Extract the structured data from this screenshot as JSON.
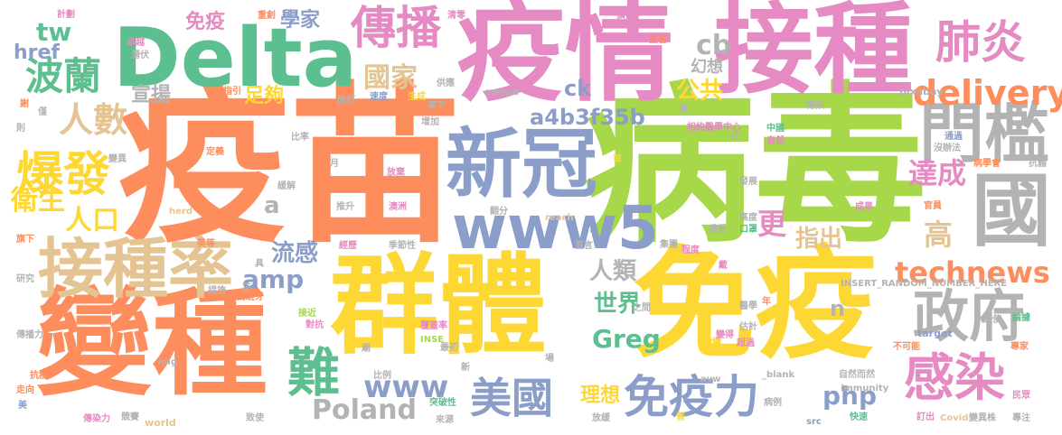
{
  "palette": {
    "orange": "#fd8d5c",
    "green": "#5cbf8f",
    "pink": "#e58ac2",
    "lime": "#a6d84a",
    "yellow": "#fdd835",
    "slate": "#8a9ec9",
    "gray": "#b3b3b3",
    "tan": "#e5c494"
  },
  "words": [
    {
      "text": "疫苗",
      "color": "#fd8d5c"
    },
    {
      "text": "病毒",
      "color": "#a6d84a"
    },
    {
      "text": "疫情",
      "color": "#e58ac2"
    },
    {
      "text": "Delta",
      "color": "#5cbf8f"
    },
    {
      "text": "接種",
      "color": "#e58ac2"
    },
    {
      "text": "群體",
      "color": "#fdd835"
    },
    {
      "text": "免疫",
      "color": "#fdd835"
    },
    {
      "text": "變種",
      "color": "#fd8d5c"
    },
    {
      "text": "新冠",
      "color": "#8a9ec9"
    },
    {
      "text": "國",
      "color": "#b3b3b3"
    },
    {
      "text": "接種率",
      "color": "#e5c494"
    },
    {
      "text": "www5",
      "color": "#8a9ec9"
    },
    {
      "text": "門檻",
      "color": "#b3b3b3"
    },
    {
      "text": "免疫力",
      "color": "#8a9ec9"
    },
    {
      "text": "美國",
      "color": "#8a9ec9"
    },
    {
      "text": "政府",
      "color": "#b3b3b3"
    },
    {
      "text": "感染",
      "color": "#e58ac2"
    },
    {
      "text": "爆發",
      "color": "#fdd835"
    },
    {
      "text": "傳播",
      "color": "#e58ac2"
    },
    {
      "text": "肺炎",
      "color": "#e58ac2"
    },
    {
      "text": "波蘭",
      "color": "#5cbf8f"
    },
    {
      "text": "人數",
      "color": "#e5c494"
    },
    {
      "text": "delivery",
      "color": "#fd8d5c"
    },
    {
      "text": "technews",
      "color": "#fd8d5c"
    },
    {
      "text": "國家",
      "color": "#e5c494"
    },
    {
      "text": "難",
      "color": "#5cbf8f"
    },
    {
      "text": "Poland",
      "color": "#b3b3b3"
    },
    {
      "text": "www",
      "color": "#8a9ec9"
    },
    {
      "text": "Greg",
      "color": "#5cbf8f"
    },
    {
      "text": "php",
      "color": "#8a9ec9"
    },
    {
      "text": "cb",
      "color": "#b3b3b3"
    },
    {
      "text": "tw",
      "color": "#5cbf8f"
    },
    {
      "text": "href",
      "color": "#8a9ec9"
    },
    {
      "text": "衛生",
      "color": "#fdd835"
    },
    {
      "text": "人口",
      "color": "#fdd835"
    },
    {
      "text": "amp",
      "color": "#8a9ec9"
    },
    {
      "text": "流感",
      "color": "#8a9ec9"
    },
    {
      "text": "a4b3f35b",
      "color": "#8a9ec9"
    },
    {
      "text": "人類",
      "color": "#b3b3b3"
    },
    {
      "text": "世界",
      "color": "#5cbf8f"
    },
    {
      "text": "理想",
      "color": "#fdd835"
    },
    {
      "text": "更",
      "color": "#e58ac2"
    },
    {
      "text": "高",
      "color": "#e5c494"
    },
    {
      "text": "達成",
      "color": "#e58ac2"
    },
    {
      "text": "指出",
      "color": "#e5c494"
    },
    {
      "text": "公共",
      "color": "#fdd835"
    },
    {
      "text": "幻想",
      "color": "#b3b3b3"
    },
    {
      "text": "ck",
      "color": "#8a9ec9"
    },
    {
      "text": "學家",
      "color": "#8a9ec9"
    },
    {
      "text": "宣揚",
      "color": "#b3b3b3"
    },
    {
      "text": "足夠",
      "color": "#fdd835"
    },
    {
      "text": "免疫",
      "color": "#e58ac2"
    },
    {
      "text": "a",
      "color": "#b3b3b3"
    },
    {
      "text": "n",
      "color": "#b3b3b3"
    },
    {
      "text": "zoneid",
      "color": "#b3b3b3"
    },
    {
      "text": "pixabay",
      "color": "#b3b3b3"
    },
    {
      "text": "INSERT_RANDOM_NUMBER_HERE",
      "color": "#b3b3b3"
    },
    {
      "text": "immunity",
      "color": "#b3b3b3"
    },
    {
      "text": "target",
      "color": "#8a9ec9"
    },
    {
      "text": "world",
      "color": "#e5c494"
    },
    {
      "text": "img",
      "color": "#b3b3b3"
    },
    {
      "text": "INSE",
      "color": "#a6d84a"
    },
    {
      "text": "_blank",
      "color": "#b3b3b3"
    },
    {
      "text": "avw",
      "color": "#b3b3b3"
    },
    {
      "text": "src",
      "color": "#8a9ec9"
    },
    {
      "text": "Covid",
      "color": "#e5c494"
    },
    {
      "text": "herd",
      "color": "#e5c494"
    },
    {
      "text": "reach",
      "color": "#e5c494"
    },
    {
      "text": "研究",
      "color": "#b3b3b3"
    },
    {
      "text": "傳染力",
      "color": "#e58ac2"
    },
    {
      "text": "抗疫",
      "color": "#fd8d5c"
    },
    {
      "text": "走向",
      "color": "#fd8d5c"
    },
    {
      "text": "美",
      "color": "#8a9ec9"
    },
    {
      "text": "競賽",
      "color": "#b3b3b3"
    },
    {
      "text": "致使",
      "color": "#b3b3b3"
    },
    {
      "text": "來源",
      "color": "#b3b3b3"
    },
    {
      "text": "放緩",
      "color": "#b3b3b3"
    },
    {
      "text": "病例",
      "color": "#b3b3b3"
    },
    {
      "text": "快速",
      "color": "#5cbf8f"
    },
    {
      "text": "訂出",
      "color": "#e58ac2"
    },
    {
      "text": "變異株",
      "color": "#b3b3b3"
    },
    {
      "text": "專注",
      "color": "#b3b3b3"
    },
    {
      "text": "突破性",
      "color": "#5cbf8f"
    },
    {
      "text": "比例",
      "color": "#b3b3b3"
    },
    {
      "text": "最初",
      "color": "#b3b3b3"
    },
    {
      "text": "持續",
      "color": "#fdd835"
    },
    {
      "text": "超過",
      "color": "#e58ac2"
    },
    {
      "text": "自然而然",
      "color": "#b3b3b3"
    },
    {
      "text": "不可能",
      "color": "#fd8d5c"
    },
    {
      "text": "專家",
      "color": "#fd8d5c"
    },
    {
      "text": "民眾",
      "color": "#e58ac2"
    },
    {
      "text": "變得",
      "color": "#e58ac2"
    },
    {
      "text": "傳播力",
      "color": "#b3b3b3"
    },
    {
      "text": "措施",
      "color": "#b3b3b3"
    },
    {
      "text": "西班牙",
      "color": "#fd8d5c"
    },
    {
      "text": "經歷",
      "color": "#e58ac2"
    },
    {
      "text": "季節性",
      "color": "#b3b3b3"
    },
    {
      "text": "直言",
      "color": "#b3b3b3"
    },
    {
      "text": "集團",
      "color": "#b3b3b3"
    },
    {
      "text": "程度",
      "color": "#e58ac2"
    },
    {
      "text": "遭受",
      "color": "#b3b3b3"
    },
    {
      "text": "高度",
      "color": "#b3b3b3"
    },
    {
      "text": "口罩",
      "color": "#5cbf8f"
    },
    {
      "text": "成果",
      "color": "#e58ac2"
    },
    {
      "text": "官員",
      "color": "#fd8d5c"
    },
    {
      "text": "發展",
      "color": "#b3b3b3"
    },
    {
      "text": "翻分",
      "color": "#b3b3b3"
    },
    {
      "text": "推升",
      "color": "#b3b3b3"
    },
    {
      "text": "澳洲",
      "color": "#e58ac2"
    },
    {
      "text": "放棄",
      "color": "#e58ac2"
    },
    {
      "text": "之間",
      "color": "#b3b3b3"
    },
    {
      "text": "醫學",
      "color": "#b3b3b3"
    },
    {
      "text": "估計",
      "color": "#b3b3b3"
    },
    {
      "text": "追使",
      "color": "#b3b3b3"
    },
    {
      "text": "論據",
      "color": "#5cbf8f"
    },
    {
      "text": "英等",
      "color": "#fd8d5c"
    },
    {
      "text": "旗下",
      "color": "#fd8d5c"
    },
    {
      "text": "接近",
      "color": "#a6d84a"
    },
    {
      "text": "對抗",
      "color": "#e58ac2"
    },
    {
      "text": "覆蓋率",
      "color": "#e58ac2"
    },
    {
      "text": "月",
      "color": "#b3b3b3"
    },
    {
      "text": "緩解",
      "color": "#b3b3b3"
    },
    {
      "text": "定義",
      "color": "#fd8d5c"
    },
    {
      "text": "變異",
      "color": "#b3b3b3"
    },
    {
      "text": "比率",
      "color": "#b3b3b3"
    },
    {
      "text": "施打",
      "color": "#b3b3b3"
    },
    {
      "text": "速度",
      "color": "#8a9ec9"
    },
    {
      "text": "生成",
      "color": "#fdd835"
    },
    {
      "text": "供應",
      "color": "#b3b3b3"
    },
    {
      "text": "高下",
      "color": "#b3b3b3"
    },
    {
      "text": "增加",
      "color": "#b3b3b3"
    },
    {
      "text": "指引",
      "color": "#fd8d5c"
    },
    {
      "text": "潛伏",
      "color": "#b3b3b3"
    },
    {
      "text": "卓越",
      "color": "#e58ac2"
    },
    {
      "text": "計劃",
      "color": "#e58ac2"
    },
    {
      "text": "重創",
      "color": "#fd8d5c"
    },
    {
      "text": "清零",
      "color": "#e58ac2"
    },
    {
      "text": "擴散",
      "color": "#e58ac2"
    },
    {
      "text": "主管",
      "color": "#fd8d5c"
    },
    {
      "text": "相約醫學中心",
      "color": "#e58ac2"
    },
    {
      "text": "中國",
      "color": "#5cbf8f"
    },
    {
      "text": "自然",
      "color": "#e58ac2"
    },
    {
      "text": "傳染",
      "color": "#b3b3b3"
    },
    {
      "text": "通過",
      "color": "#8a9ec9"
    },
    {
      "text": "沒辦法",
      "color": "#b3b3b3"
    },
    {
      "text": "病學會",
      "color": "#fd8d5c"
    },
    {
      "text": "抗體",
      "color": "#b3b3b3"
    },
    {
      "text": "化",
      "color": "#b3b3b3"
    },
    {
      "text": "真",
      "color": "#b3b3b3"
    },
    {
      "text": "首",
      "color": "#fdd835"
    },
    {
      "text": "謝",
      "color": "#fd8d5c"
    },
    {
      "text": "僅",
      "color": "#b3b3b3"
    },
    {
      "text": "則",
      "color": "#b3b3b3"
    },
    {
      "text": "具",
      "color": "#b3b3b3"
    },
    {
      "text": "正",
      "color": "#b3b3b3"
    },
    {
      "text": "年",
      "color": "#fd8d5c"
    },
    {
      "text": "戴",
      "color": "#e58ac2"
    },
    {
      "text": "場",
      "color": "#b3b3b3"
    },
    {
      "text": "新",
      "color": "#b3b3b3"
    },
    {
      "text": "廟",
      "color": "#b3b3b3"
    },
    {
      "text": "普",
      "color": "#fdd835"
    }
  ]
}
